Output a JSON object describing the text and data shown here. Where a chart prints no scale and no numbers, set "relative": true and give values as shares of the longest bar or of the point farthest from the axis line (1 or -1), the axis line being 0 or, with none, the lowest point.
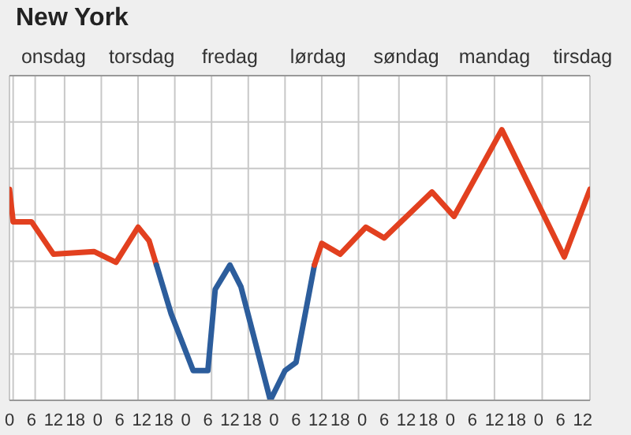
{
  "chart_data": {
    "type": "line",
    "title": "New York",
    "relative": true,
    "annotations": [
      "onsdag",
      "torsdag",
      "fredag",
      "lørdag",
      "søndag",
      "mandag",
      "tirsdag"
    ],
    "categories": [
      "0",
      null,
      null,
      null,
      null,
      null,
      "6",
      null,
      null,
      null,
      null,
      null,
      "12",
      null,
      null,
      null,
      null,
      null,
      "18",
      null,
      null,
      null,
      null,
      null,
      "0",
      null,
      null,
      null,
      null,
      null,
      "6",
      null,
      null,
      null,
      null,
      null,
      "12",
      null,
      null,
      null,
      null,
      null,
      "18",
      null,
      null,
      null,
      null,
      null,
      "0",
      null,
      null,
      null,
      null,
      null,
      "6",
      null,
      null,
      null,
      null,
      null,
      "12",
      null,
      null,
      null,
      null,
      null,
      "18",
      null,
      null,
      null,
      null,
      null,
      "0",
      null,
      null,
      null,
      null,
      null,
      "6",
      null,
      null,
      null,
      null,
      null,
      "12",
      null,
      null,
      null,
      null,
      null,
      "18",
      null,
      null,
      null,
      null,
      null,
      "0",
      null,
      null,
      null,
      null,
      null,
      "6",
      null,
      null,
      null,
      null,
      null,
      "12",
      null,
      null,
      null,
      null,
      null,
      "18",
      null,
      null,
      null,
      null,
      null,
      "0",
      null,
      null,
      null,
      null,
      null,
      "6",
      null,
      null,
      null,
      null,
      null,
      "12",
      null,
      null,
      null,
      null,
      null,
      "18",
      null,
      null,
      null,
      null,
      null,
      "0",
      null,
      null,
      null,
      null,
      null,
      "6",
      null,
      null,
      null,
      null,
      null,
      "12",
      null,
      null
    ],
    "series": [
      {
        "color": "#e2401f",
        "values": [
          0.78,
          0.66,
          null,
          null,
          null,
          null,
          0.66,
          null,
          null,
          null,
          null,
          null,
          0.54,
          null,
          null,
          null,
          null,
          null,
          null,
          null,
          null,
          null,
          null,
          0.55,
          null,
          null,
          null,
          null,
          null,
          0.51,
          null,
          null,
          null,
          null,
          null,
          0.64,
          null,
          null,
          0.59,
          null,
          0.5,
          null,
          null,
          null,
          null,
          null,
          null,
          null,
          null,
          null,
          null,
          null,
          null,
          null,
          null,
          null,
          null,
          null,
          null,
          null,
          null,
          null,
          null,
          null,
          null,
          null,
          null,
          null,
          null,
          null,
          null,
          null,
          null,
          null,
          null,
          null,
          null,
          null,
          null,
          null,
          null,
          null,
          null,
          null,
          null,
          null,
          null,
          null,
          null,
          null,
          null,
          null,
          null,
          null,
          null,
          null,
          null,
          null,
          null,
          null,
          null,
          null,
          null,
          null,
          null,
          null,
          null,
          null,
          null,
          null,
          null,
          null,
          null,
          null,
          null,
          null,
          null,
          null,
          null,
          null,
          null,
          null,
          null,
          null,
          null,
          null,
          null,
          null,
          null,
          null,
          null,
          null,
          null,
          null,
          null,
          null,
          null,
          null,
          null,
          null,
          null,
          null,
          null,
          null,
          null,
          null,
          null,
          null,
          null,
          null,
          null,
          null,
          null,
          null,
          null,
          null,
          null,
          null,
          null
        ]
      },
      {
        "color": "#2c5d9c",
        "values": [
          null,
          null,
          null,
          null,
          null,
          null,
          null,
          null,
          null,
          null,
          null,
          null,
          null,
          null,
          null,
          null,
          null,
          null,
          null,
          null,
          null,
          null,
          null,
          null,
          null,
          null,
          null,
          null,
          null,
          null,
          null,
          null,
          null,
          null,
          null,
          null,
          null,
          null,
          null,
          null,
          0.5,
          null,
          null,
          null,
          0.32,
          null,
          null,
          null,
          null,
          null,
          0.11,
          null,
          null,
          null,
          0.11,
          null,
          0.41,
          null,
          null,
          null,
          0.5,
          null,
          null,
          0.42,
          null,
          null,
          null,
          null,
          null,
          null,
          null,
          0,
          null,
          null,
          null,
          0.11,
          null,
          null,
          0.14,
          null,
          null,
          null,
          null,
          0.5,
          null,
          null,
          null,
          null,
          null,
          null,
          null,
          null,
          null,
          null,
          null,
          null,
          null,
          null,
          null,
          null,
          null,
          null,
          null,
          null,
          null,
          null,
          null,
          null,
          null,
          null,
          null,
          null,
          null,
          null,
          null,
          null,
          null,
          null,
          null,
          null,
          null,
          null,
          null,
          null,
          null,
          null,
          null,
          null,
          null,
          null,
          null,
          null,
          null,
          null,
          null,
          null,
          null,
          null,
          null,
          null,
          null,
          null,
          null,
          null,
          null,
          null,
          null,
          null,
          null,
          null,
          null,
          null,
          null,
          null,
          null,
          null,
          null,
          null,
          null
        ]
      },
      {
        "color": "#e2401f",
        "values": [
          null,
          null,
          null,
          null,
          null,
          null,
          null,
          null,
          null,
          null,
          null,
          null,
          null,
          null,
          null,
          null,
          null,
          null,
          null,
          null,
          null,
          null,
          null,
          null,
          null,
          null,
          null,
          null,
          null,
          null,
          null,
          null,
          null,
          null,
          null,
          null,
          null,
          null,
          null,
          null,
          null,
          null,
          null,
          null,
          null,
          null,
          null,
          null,
          null,
          null,
          null,
          null,
          null,
          null,
          null,
          null,
          null,
          null,
          null,
          null,
          null,
          null,
          null,
          null,
          null,
          null,
          null,
          null,
          null,
          null,
          null,
          null,
          null,
          null,
          null,
          null,
          null,
          null,
          null,
          null,
          null,
          null,
          null,
          0.5,
          null,
          0.58,
          null,
          null,
          null,
          null,
          0.54,
          null,
          null,
          null,
          null,
          null,
          null,
          0.64,
          null,
          null,
          null,
          null,
          0.6,
          null,
          null,
          null,
          null,
          null,
          null,
          null,
          null,
          null,
          null,
          null,
          null,
          0.77,
          null,
          null,
          null,
          null,
          null,
          0.68,
          null,
          null,
          null,
          null,
          null,
          null,
          null,
          null,
          null,
          null,
          null,
          null,
          1,
          null,
          null,
          null,
          null,
          null,
          null,
          null,
          null,
          null,
          null,
          null,
          null,
          null,
          null,
          null,
          null,
          0.53,
          null,
          null,
          null,
          null,
          null,
          null,
          0.78
        ]
      }
    ],
    "grid": true,
    "marker": "none",
    "line_style": "solid"
  }
}
